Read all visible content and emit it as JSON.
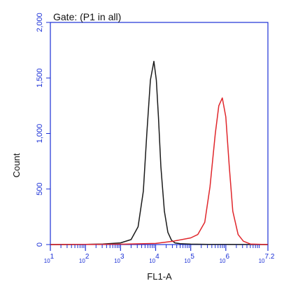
{
  "chart_data": {
    "type": "line",
    "title": "Gate: (P1 in all)",
    "xlabel": "FL1-A",
    "ylabel": "Count",
    "x_scale": "log",
    "xlim": [
      1,
      7.2
    ],
    "ylim": [
      0,
      2000
    ],
    "y_ticks": [
      {
        "value": 0,
        "label": "0"
      },
      {
        "value": 500,
        "label": "500"
      },
      {
        "value": 1000,
        "label": "1,000"
      },
      {
        "value": 1500,
        "label": "1,500"
      },
      {
        "value": 2000,
        "label": "2,000"
      }
    ],
    "x_ticks": [
      {
        "value": 1,
        "base": "10",
        "exp": "1"
      },
      {
        "value": 2,
        "base": "10",
        "exp": "2"
      },
      {
        "value": 3,
        "base": "10",
        "exp": "3"
      },
      {
        "value": 4,
        "base": "10",
        "exp": "4"
      },
      {
        "value": 5,
        "base": "10",
        "exp": "5"
      },
      {
        "value": 6,
        "base": "10",
        "exp": "6"
      },
      {
        "value": 7.2,
        "base": "10",
        "exp": "7.2"
      }
    ],
    "grid": false,
    "series": [
      {
        "color": "#1a1a1a",
        "x": [
          1.0,
          2.0,
          2.5,
          3.0,
          3.3,
          3.5,
          3.65,
          3.75,
          3.85,
          3.95,
          4.02,
          4.08,
          4.15,
          4.25,
          4.35,
          4.45,
          4.55,
          4.7,
          5.0,
          5.5,
          6.0,
          7.2
        ],
        "y": [
          0,
          2,
          5,
          15,
          45,
          160,
          480,
          1000,
          1480,
          1650,
          1480,
          1150,
          700,
          300,
          110,
          40,
          15,
          8,
          4,
          2,
          1,
          0
        ]
      },
      {
        "color": "#e0262b",
        "x": [
          1.0,
          3.0,
          4.0,
          4.5,
          5.0,
          5.2,
          5.4,
          5.55,
          5.7,
          5.8,
          5.9,
          6.0,
          6.1,
          6.2,
          6.35,
          6.5,
          6.7,
          7.2
        ],
        "y": [
          0,
          3,
          10,
          30,
          60,
          90,
          200,
          520,
          1000,
          1250,
          1320,
          1150,
          700,
          300,
          90,
          30,
          5,
          0
        ]
      }
    ]
  }
}
